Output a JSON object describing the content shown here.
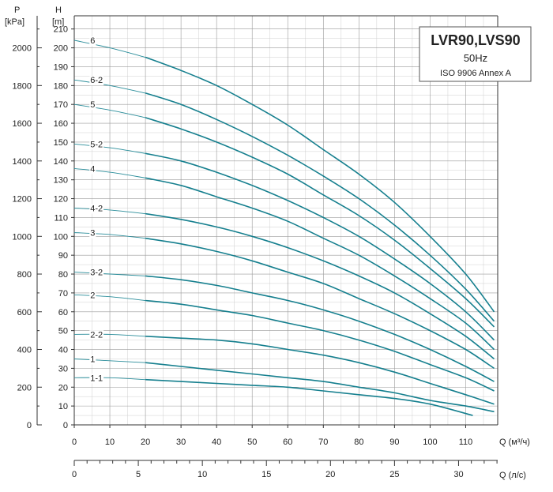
{
  "chart_data": {
    "type": "line",
    "title_box": {
      "title": "LVR90,LVS90",
      "frequency": "50Hz",
      "standard": "ISO 9906 Annex A"
    },
    "axes": {
      "p_unit_symbol": "P",
      "p_unit": "[kPa]",
      "h_unit_symbol": "H",
      "h_unit": "[m]",
      "x_label_m3h": "Q (м³/ч)",
      "x_label_ls": "Q (л/с)",
      "x_range": [
        0,
        120
      ],
      "h_range": [
        0,
        220
      ],
      "p_range": [
        0,
        2200
      ],
      "x_ticks": [
        0,
        10,
        20,
        30,
        40,
        50,
        60,
        70,
        80,
        90,
        100,
        110
      ],
      "h_ticks": [
        0,
        10,
        20,
        30,
        40,
        50,
        60,
        70,
        80,
        90,
        100,
        110,
        120,
        130,
        140,
        150,
        160,
        170,
        180,
        190,
        200,
        210
      ],
      "p_ticks": [
        0,
        200,
        400,
        600,
        800,
        1000,
        1200,
        1400,
        1600,
        1800,
        2000
      ],
      "ls_ticks": [
        0,
        5,
        10,
        15,
        20,
        25,
        30
      ],
      "grid": true
    },
    "series": [
      {
        "name": "6",
        "x": [
          0,
          10,
          20,
          30,
          40,
          50,
          60,
          70,
          80,
          90,
          100,
          110,
          118
        ],
        "y": [
          204,
          200,
          195,
          188,
          180,
          170,
          159,
          146,
          133,
          118,
          100,
          80,
          60
        ]
      },
      {
        "name": "6-2",
        "x": [
          0,
          10,
          20,
          30,
          40,
          50,
          60,
          70,
          80,
          90,
          100,
          110,
          118
        ],
        "y": [
          183,
          180,
          176,
          170,
          162,
          153,
          143,
          132,
          120,
          106,
          90,
          72,
          55
        ]
      },
      {
        "name": "5",
        "x": [
          0,
          10,
          20,
          30,
          40,
          50,
          60,
          70,
          80,
          90,
          100,
          110,
          118
        ],
        "y": [
          170,
          167,
          163,
          157,
          150,
          142,
          133,
          122,
          111,
          98,
          83,
          67,
          52
        ]
      },
      {
        "name": "5-2",
        "x": [
          0,
          10,
          20,
          30,
          40,
          50,
          60,
          70,
          80,
          90,
          100,
          110,
          118
        ],
        "y": [
          149,
          147,
          144,
          140,
          134,
          127,
          119,
          110,
          100,
          88,
          75,
          60,
          45
        ]
      },
      {
        "name": "4",
        "x": [
          0,
          10,
          20,
          30,
          40,
          50,
          60,
          70,
          80,
          90,
          100,
          110,
          118
        ],
        "y": [
          136,
          134,
          131,
          127,
          121,
          115,
          108,
          99,
          90,
          79,
          67,
          54,
          40
        ]
      },
      {
        "name": "4-2",
        "x": [
          0,
          10,
          20,
          30,
          40,
          50,
          60,
          70,
          80,
          90,
          100,
          110,
          118
        ],
        "y": [
          115,
          114,
          112,
          109,
          105,
          100,
          94,
          87,
          79,
          70,
          59,
          47,
          35
        ]
      },
      {
        "name": "3",
        "x": [
          0,
          10,
          20,
          30,
          40,
          50,
          60,
          70,
          80,
          90,
          100,
          110,
          118
        ],
        "y": [
          102,
          101,
          99,
          96,
          92,
          87,
          81,
          75,
          67,
          59,
          50,
          40,
          30
        ]
      },
      {
        "name": "3-2",
        "x": [
          0,
          10,
          20,
          30,
          40,
          50,
          60,
          70,
          80,
          90,
          100,
          110,
          118
        ],
        "y": [
          81,
          80,
          79,
          77,
          74,
          70,
          66,
          61,
          55,
          48,
          40,
          31,
          23
        ]
      },
      {
        "name": "2",
        "x": [
          0,
          10,
          20,
          30,
          40,
          50,
          60,
          70,
          80,
          90,
          100,
          110,
          118
        ],
        "y": [
          69,
          68,
          66,
          64,
          61,
          58,
          54,
          50,
          45,
          39,
          32,
          25,
          18
        ]
      },
      {
        "name": "2-2",
        "x": [
          0,
          10,
          20,
          30,
          40,
          50,
          60,
          70,
          80,
          90,
          100,
          110,
          118
        ],
        "y": [
          48,
          48,
          47,
          46,
          45,
          43,
          40,
          37,
          33,
          28,
          22,
          16,
          11
        ]
      },
      {
        "name": "1",
        "x": [
          0,
          10,
          20,
          30,
          40,
          50,
          60,
          70,
          80,
          90,
          100,
          110,
          118
        ],
        "y": [
          35,
          34,
          33,
          31,
          29,
          27,
          25,
          23,
          20,
          17,
          13,
          10,
          7
        ]
      },
      {
        "name": "1-1",
        "x": [
          0,
          10,
          20,
          30,
          40,
          50,
          60,
          70,
          80,
          90,
          100,
          112
        ],
        "y": [
          25,
          25,
          24,
          23,
          22,
          21,
          20,
          18,
          16,
          14,
          11,
          5
        ]
      }
    ]
  }
}
